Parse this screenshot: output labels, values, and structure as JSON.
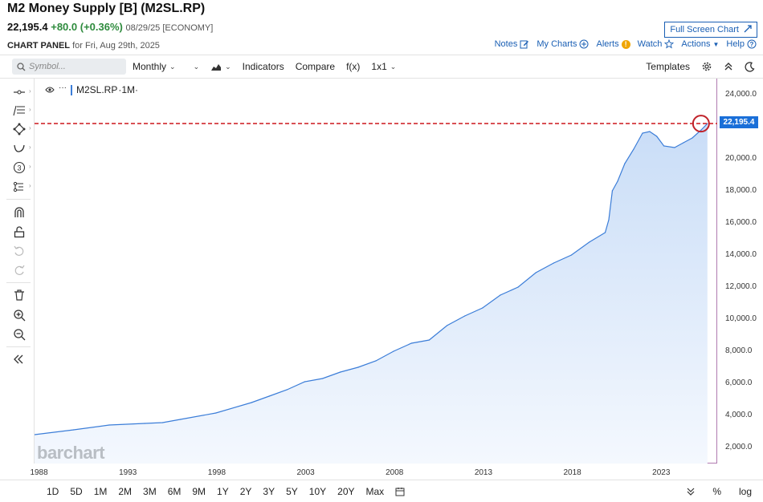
{
  "header": {
    "title": "M2 Money Supply [B] (M2SL.RP)",
    "price": "22,195.4",
    "change": "+80.0 (+0.36%)",
    "date": "08/29/25 [ECONOMY]",
    "panel_label": "CHART PANEL",
    "panel_date": "for Fri, Aug 29th, 2025",
    "fullscreen_label": "Full Screen Chart",
    "links": {
      "notes": "Notes",
      "my_charts": "My Charts",
      "alerts": "Alerts",
      "alerts_badge": "!",
      "watch": "Watch",
      "actions": "Actions",
      "help": "Help"
    }
  },
  "toolbar": {
    "symbol_placeholder": "Symbol...",
    "interval": "Monthly",
    "indicators": "Indicators",
    "compare": "Compare",
    "fx": "f(x)",
    "layout": "1x1",
    "templates": "Templates"
  },
  "legend": {
    "symbol": "M2SL.RP",
    "interval": "·1M·"
  },
  "watermark": "barchart",
  "price_tag": "22,195.4",
  "range_buttons": [
    "1D",
    "5D",
    "1M",
    "2M",
    "3M",
    "6M",
    "9M",
    "1Y",
    "2Y",
    "3Y",
    "5Y",
    "10Y",
    "20Y",
    "Max"
  ],
  "range_right": {
    "percent": "%",
    "log": "log"
  },
  "colors": {
    "line": "#3b7dd8",
    "area": "#d6e6fa",
    "reference_line": "#d0282e",
    "price_tag": "#1a6fd8",
    "positive_change": "#2e8b3d",
    "link": "#1a5fb4"
  },
  "chart_data": {
    "type": "area",
    "title": "",
    "ylabel": "",
    "xlabel": "",
    "ylim": [
      1000,
      25000
    ],
    "xlim": [
      1987.8,
      2026.2
    ],
    "y_ticks": [
      "2,000.0",
      "4,000.0",
      "6,000.0",
      "8,000.0",
      "10,000.0",
      "12,000.0",
      "14,000.0",
      "16,000.0",
      "18,000.0",
      "20,000.0",
      "24,000.0"
    ],
    "x_ticks": [
      "1988",
      "1993",
      "1998",
      "2003",
      "2008",
      "2013",
      "2018",
      "2023"
    ],
    "reference_value": 22195.4,
    "series": [
      {
        "x": [
          1987.8,
          1990,
          1992,
          1994,
          1995,
          1996,
          1998,
          2000,
          2001,
          2002,
          2003,
          2004,
          2005,
          2006,
          2007,
          2008,
          2009,
          2010,
          2011,
          2012,
          2013,
          2014,
          2015,
          2016,
          2017,
          2018,
          2019,
          2019.9,
          2020.1,
          2020.3,
          2020.6,
          2021,
          2021.5,
          2022,
          2022.4,
          2022.8,
          2023.2,
          2023.8,
          2024.3,
          2024.8,
          2025.3,
          2025.65
        ],
        "values": [
          2800,
          3100,
          3400,
          3500,
          3550,
          3750,
          4150,
          4800,
          5200,
          5600,
          6100,
          6300,
          6700,
          7000,
          7400,
          8000,
          8500,
          8700,
          9600,
          10200,
          10700,
          11500,
          12000,
          12900,
          13500,
          14000,
          14800,
          15400,
          16200,
          18000,
          18600,
          19700,
          20600,
          21600,
          21700,
          21400,
          20800,
          20700,
          21000,
          21300,
          21800,
          22195.4
        ]
      }
    ]
  }
}
